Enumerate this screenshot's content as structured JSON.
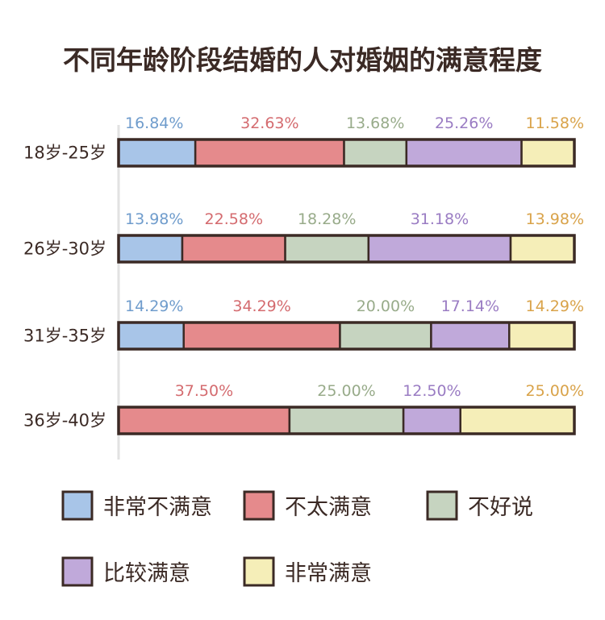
{
  "chart_data": {
    "type": "bar",
    "orientation": "horizontal",
    "stacked": true,
    "percent_stacked": true,
    "title": "不同年龄阶段结婚的人对婚姻的满意程度",
    "categories": [
      "18岁-25岁",
      "26岁-30岁",
      "31岁-35岁",
      "36岁-40岁"
    ],
    "series": [
      {
        "name": "非常不满意",
        "color": "#a8c5e8",
        "label_color": "#6f9ccc",
        "values": [
          16.84,
          13.98,
          14.29,
          0
        ]
      },
      {
        "name": "不太满意",
        "color": "#e58a8c",
        "label_color": "#d46b6f",
        "values": [
          32.63,
          22.58,
          34.29,
          37.5
        ]
      },
      {
        "name": "不好说",
        "color": "#c6d4c0",
        "label_color": "#98ab8a",
        "values": [
          13.68,
          18.28,
          20.0,
          25.0
        ]
      },
      {
        "name": "比较满意",
        "color": "#c0a9da",
        "label_color": "#9a7cc3",
        "values": [
          25.26,
          31.18,
          17.14,
          12.5
        ]
      },
      {
        "name": "非常满意",
        "color": "#f5eeb8",
        "label_color": "#d9a34a",
        "values": [
          11.58,
          13.98,
          14.29,
          25.0
        ]
      }
    ],
    "value_labels": [
      [
        "16.84%",
        "32.63%",
        "13.68%",
        "25.26%",
        "11.58%"
      ],
      [
        "13.98%",
        "22.58%",
        "18.28%",
        "31.18%",
        "13.98%"
      ],
      [
        "14.29%",
        "34.29%",
        "20.00%",
        "17.14%",
        "14.29%"
      ],
      [
        "",
        "37.50%",
        "25.00%",
        "12.50%",
        "25.00%"
      ]
    ],
    "legend_position": "bottom",
    "grid": false
  }
}
